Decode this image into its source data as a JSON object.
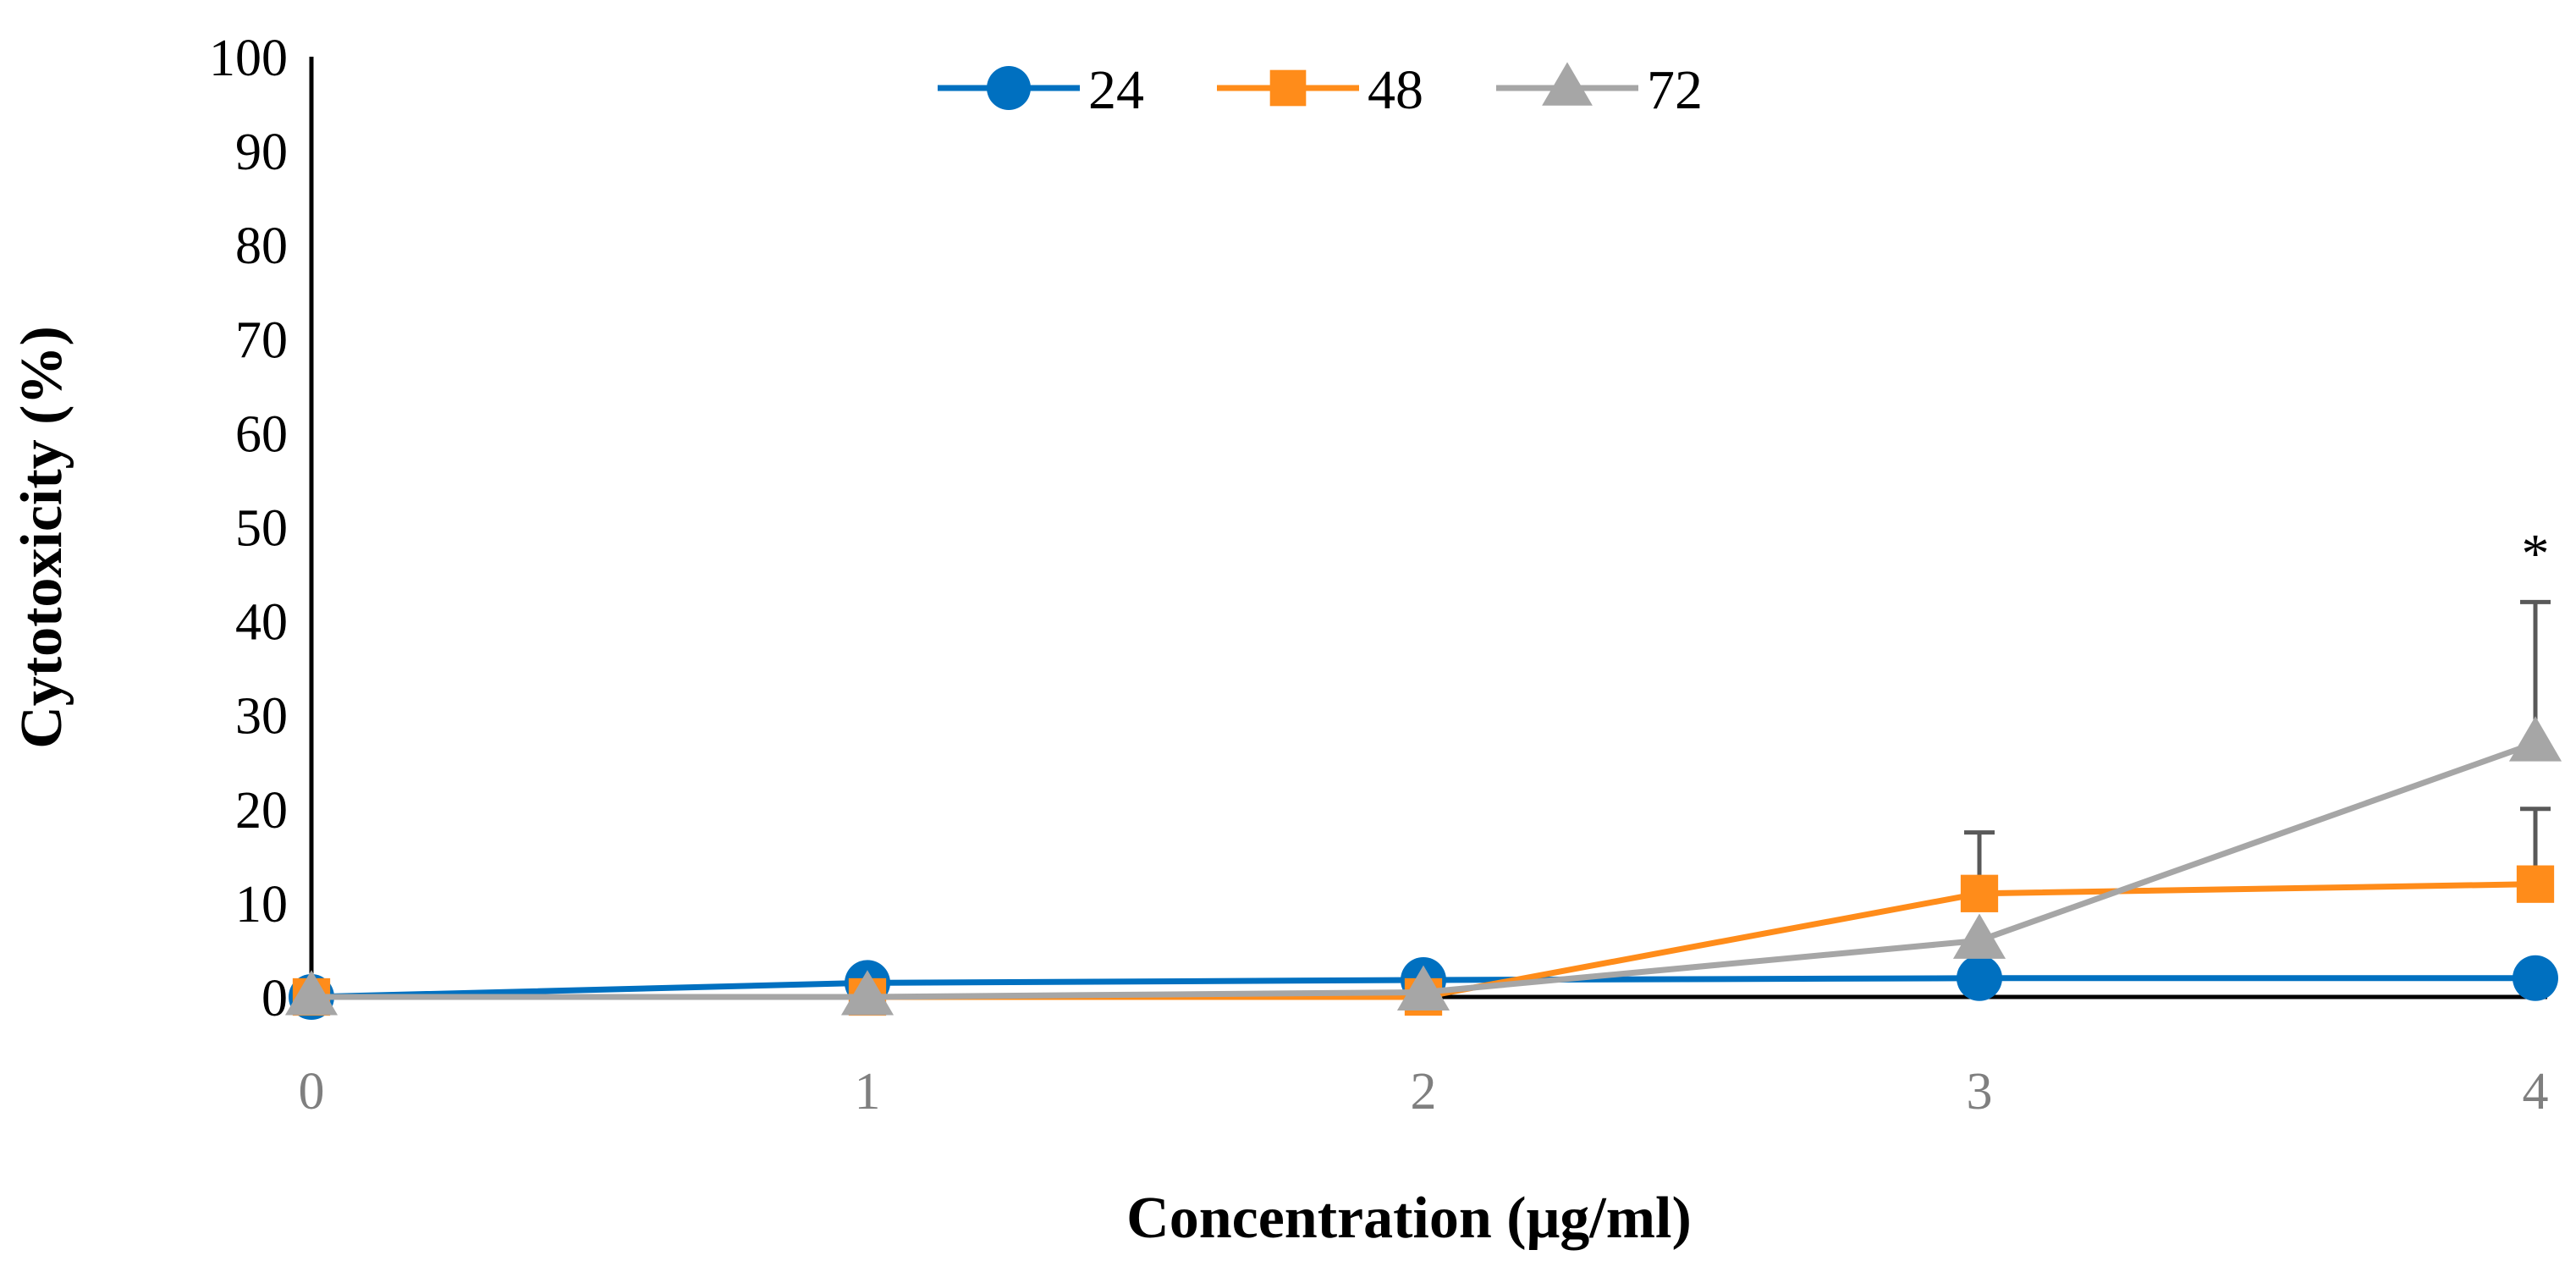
{
  "chart_data": {
    "type": "line",
    "title": "",
    "xlabel": "Concentration (μg/ml)",
    "ylabel": "Cytotoxicity (%)",
    "x": [
      0,
      1,
      2,
      3,
      4
    ],
    "x_tick_labels": [
      "0",
      "1",
      "2",
      "3",
      "4"
    ],
    "xlim": [
      0,
      4
    ],
    "ylim": [
      0,
      100
    ],
    "y_ticks": [
      0,
      10,
      20,
      30,
      40,
      50,
      60,
      70,
      80,
      90,
      100
    ],
    "y_tick_labels": [
      "0",
      "10",
      "20",
      "30",
      "40",
      "50",
      "60",
      "70",
      "80",
      "90",
      "100"
    ],
    "grid": false,
    "legend_position": "top-center",
    "series": [
      {
        "name": "24",
        "color": "#0070c0",
        "marker": "circle",
        "values": [
          0,
          1.5,
          1.8,
          2,
          2
        ],
        "errors": [
          0,
          0,
          0,
          0,
          0
        ]
      },
      {
        "name": "48",
        "color": "#ff8c1a",
        "marker": "square",
        "values": [
          0,
          0,
          0,
          11,
          12
        ],
        "errors": [
          0,
          0,
          0,
          6.5,
          8
        ]
      },
      {
        "name": "72",
        "color": "#a6a6a6",
        "marker": "triangle",
        "values": [
          0,
          0,
          0.5,
          6,
          27
        ],
        "errors": [
          0,
          0,
          0,
          0,
          15
        ]
      }
    ],
    "annotations": [
      {
        "text": "*",
        "x": 4,
        "y": 47
      }
    ]
  }
}
